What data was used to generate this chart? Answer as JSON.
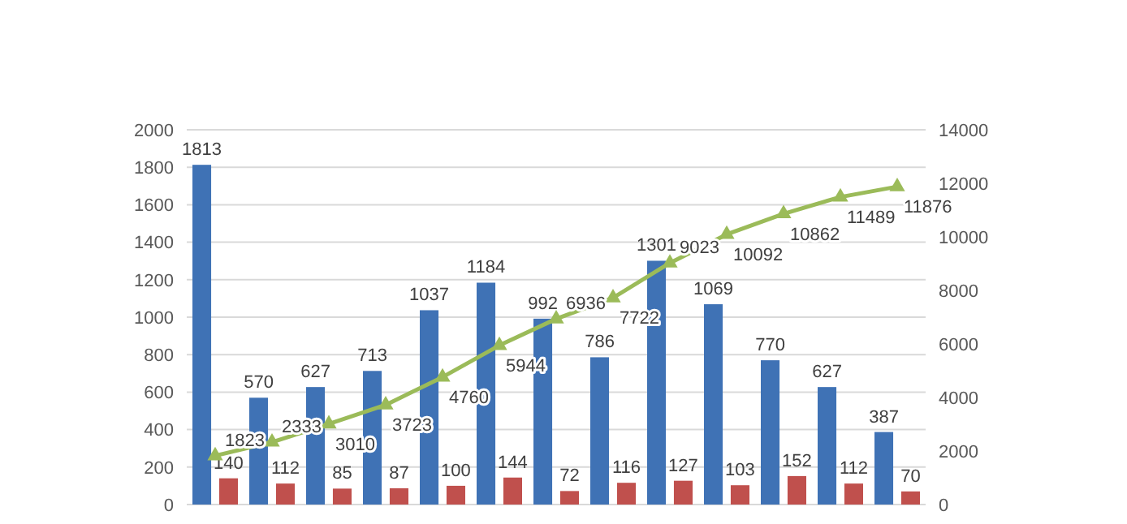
{
  "chart_data": {
    "type": "bar",
    "categories": [
      null,
      null,
      null,
      null,
      null,
      null,
      null,
      null,
      null,
      null,
      null,
      null,
      null
    ],
    "series": [
      {
        "color": "#3f72b5",
        "values": [
          1813,
          570,
          627,
          713,
          1037,
          1184,
          992,
          786,
          1301,
          1069,
          770,
          627,
          387
        ]
      },
      {
        "color": "#c0504d",
        "values": [
          140,
          112,
          85,
          87,
          100,
          144,
          72,
          116,
          127,
          103,
          152,
          112,
          70
        ]
      },
      {
        "type": "line",
        "axis": "y2",
        "color": "#9bbb59",
        "marker": "triangle",
        "values": [
          1823,
          2333,
          3010,
          3723,
          4760,
          5944,
          6936,
          7722,
          9023,
          10092,
          10862,
          11489,
          11876
        ]
      }
    ],
    "ylim": [
      0,
      2000
    ],
    "yticks": [
      0,
      200,
      400,
      600,
      800,
      1000,
      1200,
      1400,
      1600,
      1800,
      2000
    ],
    "y2lim": [
      0,
      14000
    ],
    "y2ticks": [
      0,
      2000,
      4000,
      6000,
      8000,
      10000,
      12000,
      14000
    ],
    "grid": "y",
    "data_labels": true,
    "legend": false
  }
}
